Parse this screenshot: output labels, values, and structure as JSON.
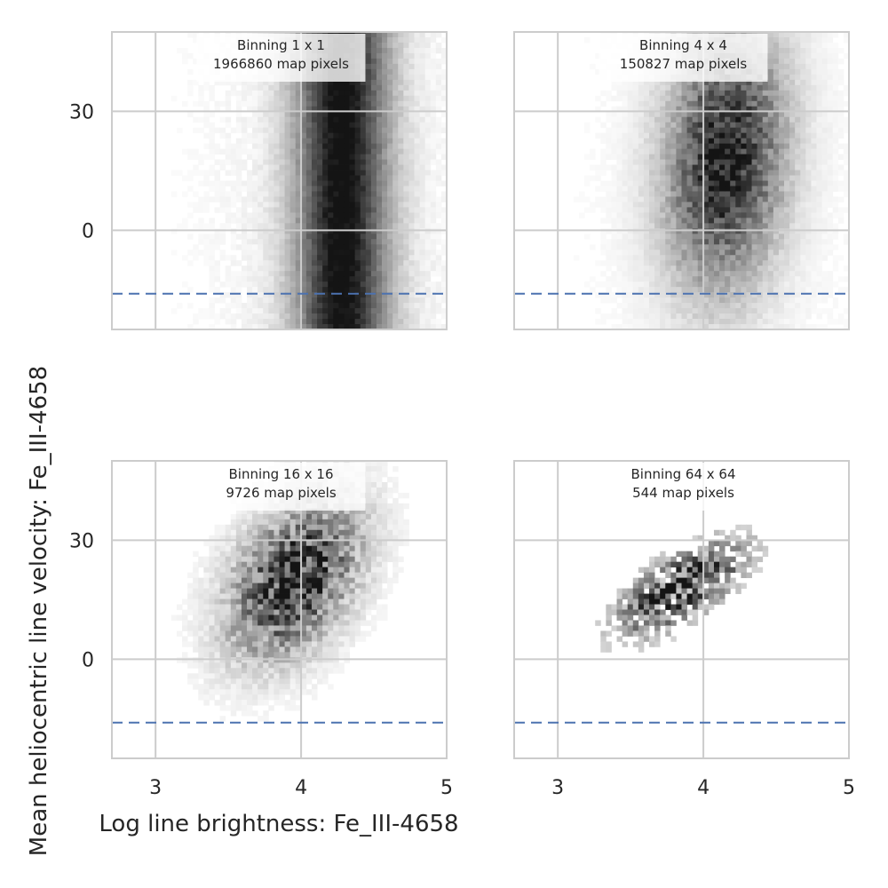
{
  "chart_data": {
    "type": "heatmap",
    "xlabel": "Log line brightness: Fe_III-4658",
    "ylabel": "Mean heliocentric line velocity: Fe_III-4658",
    "xlim": [
      2.7,
      5.0
    ],
    "ylim": [
      -25,
      50
    ],
    "xticks": [
      3,
      4,
      5
    ],
    "yticks": [
      0,
      30
    ],
    "grid": true,
    "reference_line": {
      "y": -16,
      "style": "dashed",
      "color": "#4c72b0"
    },
    "colormap": "greys",
    "panels": [
      {
        "annotation": [
          "Binning 1 x 1",
          "1966860 map pixels"
        ],
        "pixels": 1966860,
        "peak_x": 4.28,
        "peak_y": 10,
        "spread_x": 0.22,
        "spread_y": 40,
        "grain": 0.04,
        "background": 0.1
      },
      {
        "annotation": [
          "Binning 4 x 4",
          "150827 map pixels"
        ],
        "pixels": 150827,
        "peak_x": 4.15,
        "peak_y": 18,
        "spread_x": 0.28,
        "spread_y": 22,
        "grain": 0.3,
        "background": 0.04
      },
      {
        "annotation": [
          "Binning 16 x 16",
          "9726 map pixels"
        ],
        "pixels": 9726,
        "peak_x": 3.95,
        "peak_y": 20,
        "spread_x": 0.3,
        "spread_y": 12,
        "grain": 0.6,
        "background": 0.02
      },
      {
        "annotation": [
          "Binning 64 x 64",
          "544 map pixels"
        ],
        "pixels": 544,
        "peak_x": 3.85,
        "peak_y": 18,
        "spread_x": 0.3,
        "spread_y": 6,
        "grain": 0.85,
        "background": 0.0
      }
    ]
  }
}
